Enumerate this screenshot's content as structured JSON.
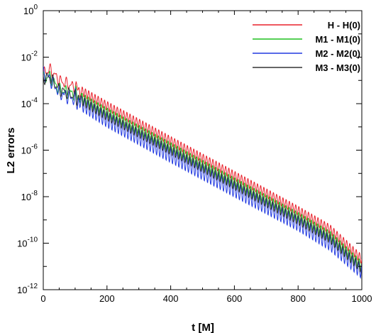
{
  "chart_data": {
    "type": "line",
    "xlabel": "t [M]",
    "ylabel": "L2 errors",
    "xlim": [
      0,
      1000
    ],
    "ylim_exponent": [
      -12,
      0
    ],
    "y_scale": "log",
    "grid": false,
    "legend_position": "top-right",
    "x_ticks": [
      "0",
      "200",
      "400",
      "600",
      "800",
      "1000"
    ],
    "y_ticks": [
      {
        "base": "10",
        "exp": "0"
      },
      {
        "base": "10",
        "exp": "-2"
      },
      {
        "base": "10",
        "exp": "-4"
      },
      {
        "base": "10",
        "exp": "-6"
      },
      {
        "base": "10",
        "exp": "-8"
      },
      {
        "base": "10",
        "exp": "-10"
      },
      {
        "base": "10",
        "exp": "-12"
      }
    ],
    "oscillation_period": 10,
    "series": [
      {
        "name": "H - H(0)",
        "color": "#e8202a",
        "points": [
          [
            0,
            0.002
          ],
          [
            20,
            0.003
          ],
          [
            50,
            0.001
          ],
          [
            100,
            0.0005
          ],
          [
            200,
            8e-05
          ],
          [
            400,
            2.5e-06
          ],
          [
            600,
            8e-08
          ],
          [
            800,
            2.5e-09
          ],
          [
            900,
            4e-10
          ],
          [
            1000,
            2e-11
          ]
        ],
        "osc_decades": 0.4
      },
      {
        "name": "M1 - M1(0)",
        "color": "#1fbf1f",
        "points": [
          [
            0,
            0.0012
          ],
          [
            20,
            0.0015
          ],
          [
            50,
            0.0004
          ],
          [
            100,
            0.00025
          ],
          [
            200,
            4e-05
          ],
          [
            400,
            1.3e-06
          ],
          [
            600,
            4e-08
          ],
          [
            800,
            1.3e-09
          ],
          [
            900,
            2e-10
          ],
          [
            1000,
            1e-11
          ]
        ],
        "osc_decades": 0.45
      },
      {
        "name": "M2 - M2(0)",
        "color": "#2038e0",
        "points": [
          [
            0,
            0.002
          ],
          [
            20,
            0.0012
          ],
          [
            50,
            0.0003
          ],
          [
            100,
            0.00015
          ],
          [
            200,
            2e-05
          ],
          [
            400,
            6e-07
          ],
          [
            600,
            2e-08
          ],
          [
            800,
            7e-10
          ],
          [
            900,
            1e-10
          ],
          [
            1000,
            6e-12
          ]
        ],
        "osc_decades": 0.65
      },
      {
        "name": "M3 - M3(0)",
        "color": "#333333",
        "points": [
          [
            0,
            0.0012
          ],
          [
            20,
            0.0014
          ],
          [
            50,
            0.0004
          ],
          [
            100,
            0.0002
          ],
          [
            200,
            3e-05
          ],
          [
            400,
            1e-06
          ],
          [
            600,
            3.2e-08
          ],
          [
            800,
            1e-09
          ],
          [
            900,
            1.6e-10
          ],
          [
            1000,
            8e-12
          ]
        ],
        "osc_decades": 0.4
      }
    ]
  }
}
